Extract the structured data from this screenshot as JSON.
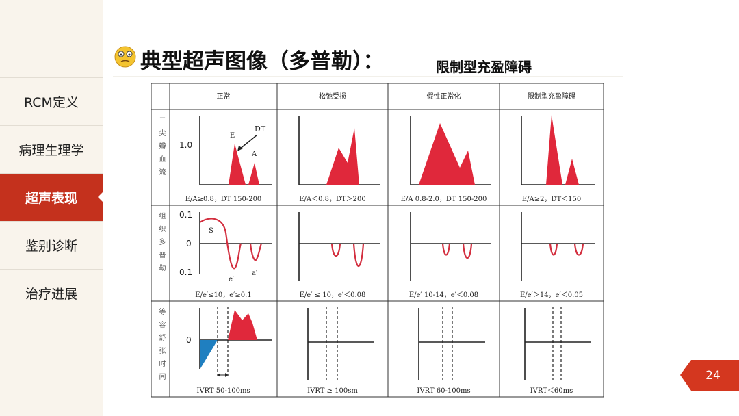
{
  "header": {
    "title": "典型超声图像（多普勒）：",
    "subtitle": "限制型充盈障碍"
  },
  "sidebar": {
    "items": [
      "RCM定义",
      "病理生理学",
      "超声表现",
      "鉴别诊断",
      "治疗进展"
    ],
    "active": 2
  },
  "table": {
    "columns": [
      "正常",
      "松弛受损",
      "假性正常化",
      "限制型充盈障碍"
    ],
    "rows": [
      {
        "label": "二尖瓣血流",
        "captions": [
          "E/A≥0.8，DT 150-200",
          "E/A＜0.8，DT＞200",
          "E/A 0.8-2.0，DT 150-200",
          "E/A≥2，DT＜150"
        ]
      },
      {
        "label": "组织多普勒",
        "captions": [
          "E/e′≤10，e′≥0.1",
          "E/e′ ≤ 10，e′＜0.08",
          "E/e′ 10-14，e′＜0.08",
          "E/e′＞14，e′＜0.05"
        ]
      },
      {
        "label": "等容舒张时间",
        "captions": [
          "IVRT 50-100ms",
          "IVRT ≥ 100sm",
          "IVRT 60-100ms",
          "IVRT＜60ms"
        ]
      }
    ]
  },
  "graph_labels": {
    "mitral": {
      "y_tick": "1.0",
      "e": "E",
      "dt": "DT",
      "a": "A"
    },
    "tissue": {
      "y_top": "0.1",
      "y_zero": "0",
      "y_bottom": "0.1",
      "s": "S",
      "e": "e′",
      "a": "a′"
    },
    "ivrt": {
      "y_zero": "0"
    }
  },
  "page_number": "24"
}
